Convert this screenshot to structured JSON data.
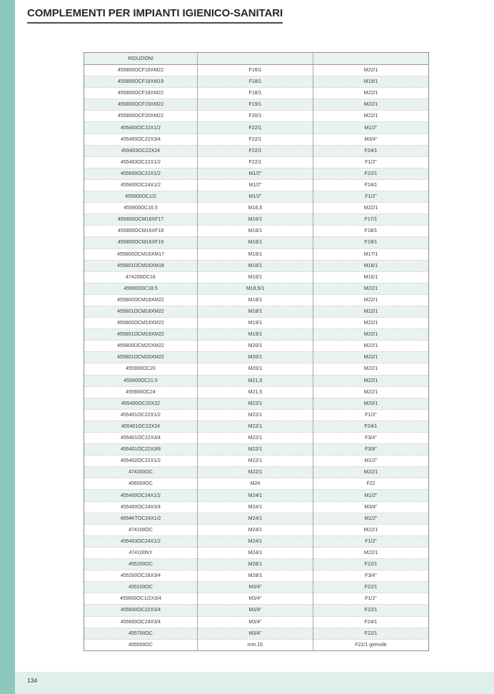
{
  "page": {
    "title": "COMPLEMENTI PER IMPIANTI IGIENICO-SANITARI",
    "page_number": "134"
  },
  "colors": {
    "accent_strip": "#8cc8bb",
    "footer_bar": "#e1efea",
    "row_alt": "#e8f2ee",
    "table_border": "#8e8e8e",
    "text": "#3c3c3c"
  },
  "table": {
    "header": [
      "RIDUZIONI",
      "",
      ""
    ],
    "rows": [
      [
        "455800OCF16XM22",
        "F16/1",
        "M22/1"
      ],
      [
        "455800OCF18XM19",
        "F18/1",
        "M19/1"
      ],
      [
        "455800OCF18XM22",
        "F18/1",
        "M22/1"
      ],
      [
        "455800OCF19XM22",
        "F19/1",
        "M22/1"
      ],
      [
        "455800OCF20XM22",
        "F20/1",
        "M22/1"
      ],
      [
        "455400OC22X1/2",
        "F22/1",
        "M1/2\""
      ],
      [
        "455400OC22X3/4",
        "F22/1",
        "M3/4\""
      ],
      [
        "455403OC22X24",
        "F22/1",
        "F24/1"
      ],
      [
        "455403OC22X1/2",
        "F22/1",
        "F1/2\""
      ],
      [
        "455600OC22X1/2",
        "M1/2\"",
        "F22/1"
      ],
      [
        "455600OC24X1/2",
        "M1/2\"",
        "F24/1"
      ],
      [
        "455600OC1/2",
        "M1/2\"",
        "F1/2\""
      ],
      [
        "455900OC16.5",
        "M16,5",
        "M22/1"
      ],
      [
        "455800OCM16XF17",
        "M16/1",
        "F17/1"
      ],
      [
        "455800OCM16XF18",
        "M16/1",
        "F18/1"
      ],
      [
        "455800OCM16XF19",
        "M16/1",
        "F19/1"
      ],
      [
        "455800OCM16XM17",
        "M16/1",
        "M17/1"
      ],
      [
        "455801OCM16XM18",
        "M16/1",
        "M18/1"
      ],
      [
        "474200OC16",
        "M16/1",
        "M16/1"
      ],
      [
        "455900OC18.5",
        "M18,5/1",
        "M22/1"
      ],
      [
        "455800OCM18XM22",
        "M18/1",
        "M22/1"
      ],
      [
        "455801OCM18XM22",
        "M18/1",
        "M22/1"
      ],
      [
        "455800OCM19XM22",
        "M19/1",
        "M22/1"
      ],
      [
        "455801OCM19XM22",
        "M19/1",
        "M22/1"
      ],
      [
        "455800OCM20XM22",
        "M20/1",
        "M22/1"
      ],
      [
        "455801OCM20XM22",
        "M20/1",
        "M22/1"
      ],
      [
        "455900OC20",
        "M20/1",
        "M22/1"
      ],
      [
        "455900OC21.5",
        "M21,5",
        "M22/1"
      ],
      [
        "455900OC24",
        "M21,5",
        "M22/1"
      ],
      [
        "455400OC20X22",
        "M22/1",
        "M20/1"
      ],
      [
        "455401OC22X1/2",
        "M22/1",
        "F1/2\""
      ],
      [
        "455401OC22X24",
        "M22/1",
        "F24/1"
      ],
      [
        "455401OC22X3/4",
        "M22/1",
        "F3/4\""
      ],
      [
        "455401OC22X3/8",
        "M22/1",
        "F3/8\""
      ],
      [
        "455402OC22X1/2",
        "M22/1",
        "M1/2\""
      ],
      [
        "474200OC",
        "M22/1",
        "M22/1"
      ],
      [
        "456000OC",
        "M24",
        "F22"
      ],
      [
        "455400OC24X1/2",
        "M24/1",
        "M1/2\""
      ],
      [
        "455400OC24X3/4",
        "M24/1",
        "M3/4\""
      ],
      [
        "4554KTOC24X1/2",
        "M24/1",
        "M1/2\""
      ],
      [
        "474100OC",
        "M24/1",
        "M22/1"
      ],
      [
        "455403OC24X1/2",
        "M24/1",
        "F1/2\""
      ],
      [
        "474100NY",
        "M24/1",
        "M22/1"
      ],
      [
        "455200OC",
        "M28/1",
        "F22/1"
      ],
      [
        "455200OC28X3/4",
        "M28/1",
        "F3/4\""
      ],
      [
        "455100OC",
        "M3/4\"",
        "F22/1"
      ],
      [
        "455600OC1/2X3/4",
        "M3/4\"",
        "F1/2\""
      ],
      [
        "455600OC22X3/4",
        "M3/4\"",
        "F22/1"
      ],
      [
        "455600OC24X3/4",
        "M3/4\"",
        "F24/1"
      ],
      [
        "455700OC",
        "M3/4\"",
        "F22/1"
      ],
      [
        "455500OC",
        "mm.15",
        "F22/1 girevole"
      ]
    ]
  }
}
